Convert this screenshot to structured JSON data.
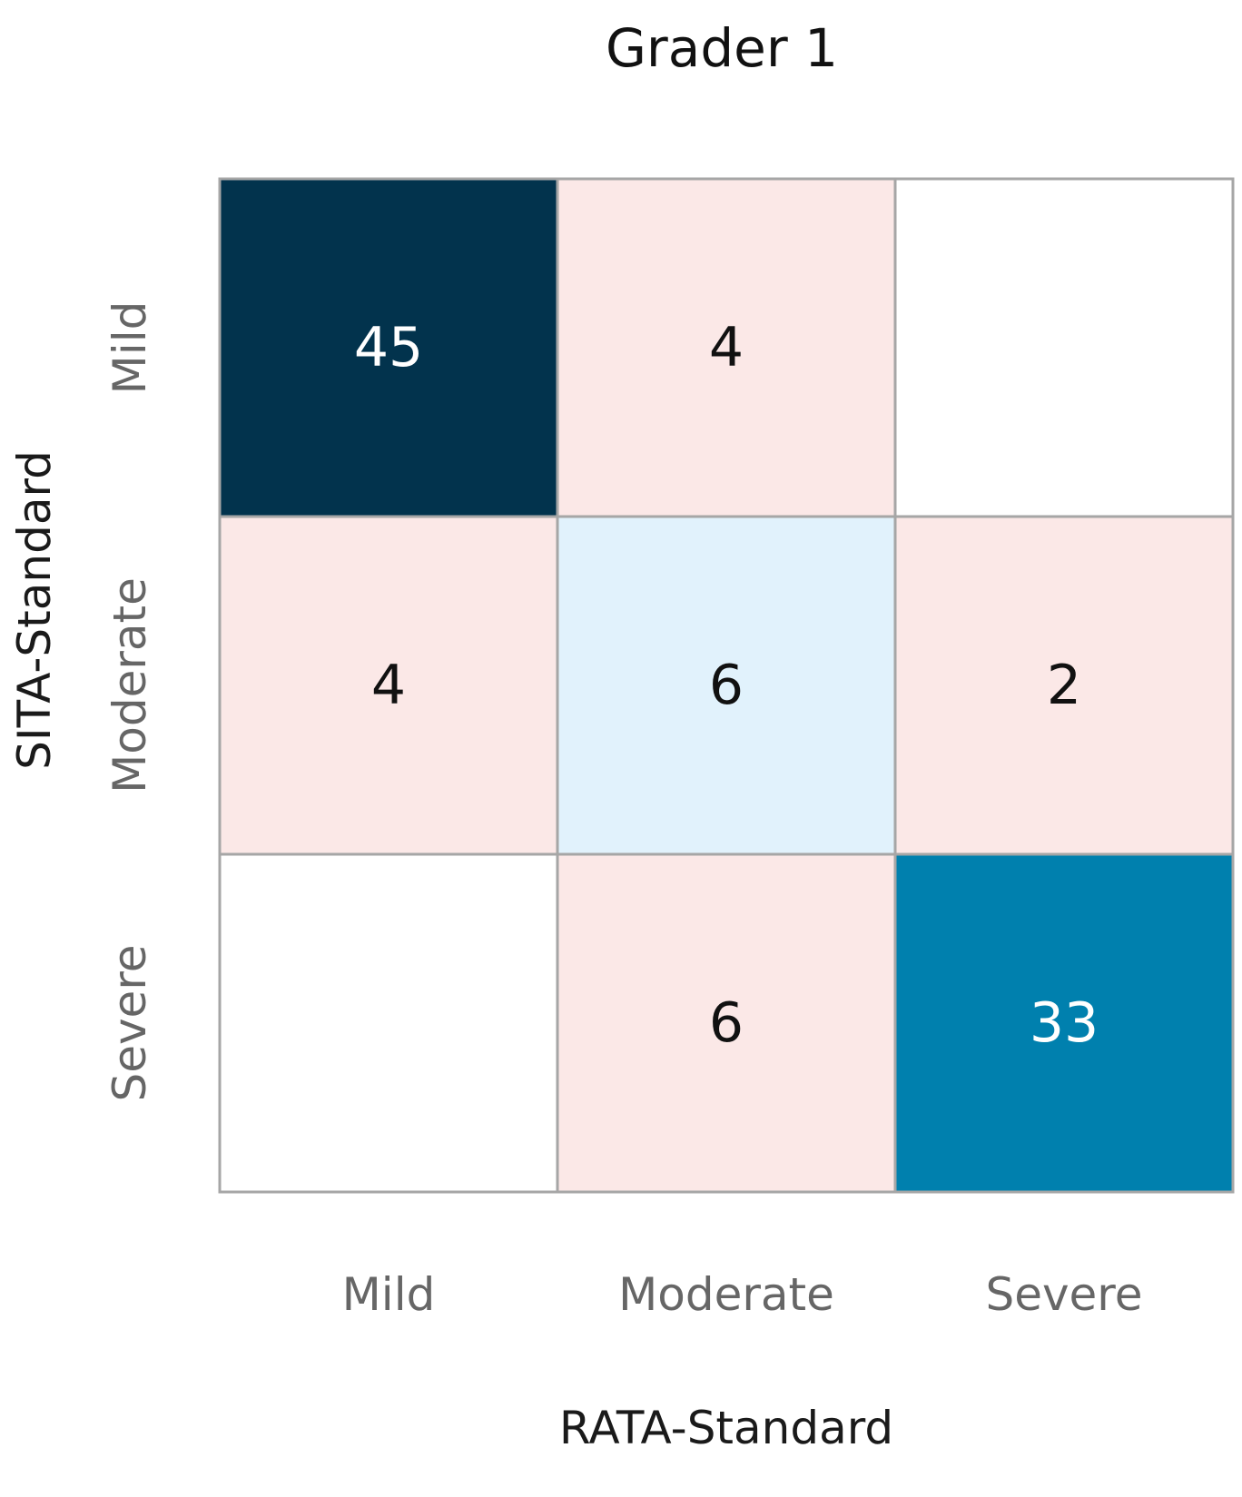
{
  "chart_data": {
    "type": "heatmap",
    "title": "Grader 1",
    "xlabel": "RATA-Standard",
    "ylabel": "SITA-Standard",
    "x_categories": [
      "Mild",
      "Moderate",
      "Severe"
    ],
    "y_categories": [
      "Mild",
      "Moderate",
      "Severe"
    ],
    "values": [
      [
        45,
        4,
        null
      ],
      [
        4,
        6,
        2
      ],
      [
        null,
        6,
        33
      ]
    ],
    "cell_colors": [
      [
        "#02334d",
        "#fbe8e7",
        "#ffffff"
      ],
      [
        "#fbe8e7",
        "#e1f2fc",
        "#fbe8e7"
      ],
      [
        "#ffffff",
        "#fbe8e7",
        "#0080ae"
      ]
    ],
    "label_colors": [
      [
        "#ffffff",
        "#111111",
        "#111111"
      ],
      [
        "#111111",
        "#111111",
        "#111111"
      ],
      [
        "#111111",
        "#111111",
        "#ffffff"
      ]
    ],
    "grid_color": "#a6a6a6"
  }
}
